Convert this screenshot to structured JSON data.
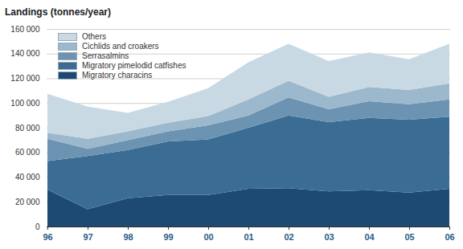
{
  "chart_data": {
    "type": "area",
    "title": "Landings (tonnes/year)",
    "stacked": true,
    "grid": true,
    "legend": "upper left",
    "x": [
      "96",
      "97",
      "98",
      "99",
      "00",
      "01",
      "02",
      "03",
      "04",
      "05",
      "06"
    ],
    "series": [
      {
        "name": "Migratory characins",
        "color": "#1d4a72",
        "values": [
          30000,
          14000,
          23000,
          25500,
          25500,
          30500,
          31000,
          28500,
          29500,
          27500,
          30500
        ]
      },
      {
        "name": "Migratory pimelodid catfishes",
        "color": "#3b6d94",
        "values": [
          23000,
          43000,
          39000,
          43500,
          45000,
          49500,
          59000,
          56000,
          58500,
          59000,
          58500
        ]
      },
      {
        "name": "Serrasalmins",
        "color": "#6c93b1",
        "values": [
          18000,
          6000,
          8000,
          8000,
          11500,
          10000,
          14500,
          10500,
          13500,
          12500,
          14000
        ]
      },
      {
        "name": "Cichlids and croakers",
        "color": "#9bb8cc",
        "values": [
          5000,
          8000,
          7000,
          7000,
          7500,
          13000,
          13500,
          10000,
          11500,
          11500,
          13000
        ]
      },
      {
        "name": "Others",
        "color": "#c9d9e4",
        "values": [
          31500,
          26000,
          15000,
          17000,
          22500,
          30000,
          30000,
          29000,
          28000,
          25000,
          32000
        ]
      }
    ],
    "ylim": [
      0,
      160000
    ],
    "yticks": [
      0,
      {
        "value": 20000,
        "label": "20 000"
      },
      {
        "value": 40000,
        "label": "40 000"
      },
      {
        "value": 60000,
        "label": "60 000"
      },
      {
        "value": 80000,
        "label": "80 000"
      },
      {
        "value": 100000,
        "label": "100 000"
      },
      {
        "value": 120000,
        "label": "120 000"
      },
      {
        "value": 140000,
        "label": "140 000"
      },
      {
        "value": 160000,
        "label": "160 000"
      }
    ]
  }
}
